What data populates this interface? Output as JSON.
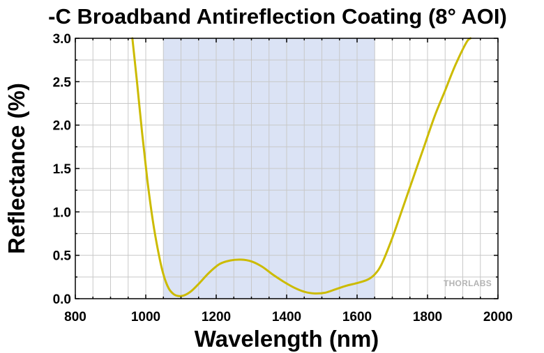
{
  "chart_data": {
    "type": "line",
    "title": "-C Broadband Antireflection Coating (8° AOI)",
    "xlabel": "Wavelength (nm)",
    "ylabel": "Reflectance (%)",
    "xlim": [
      800,
      2000
    ],
    "ylim": [
      0,
      3.0
    ],
    "x_ticks": [
      "800",
      "1000",
      "1200",
      "1400",
      "1600",
      "1800",
      "2000"
    ],
    "y_ticks": [
      "0.0",
      "0.5",
      "1.0",
      "1.5",
      "2.0",
      "2.5",
      "3.0"
    ],
    "grid": true,
    "shaded_band": {
      "x_start": 1050,
      "x_end": 1650,
      "color": "#dbe3f5"
    },
    "series": [
      {
        "color": "#ccbb00",
        "x": [
          962,
          975,
          990,
          1005,
          1020,
          1035,
          1050,
          1065,
          1080,
          1095,
          1110,
          1130,
          1150,
          1180,
          1210,
          1240,
          1270,
          1300,
          1330,
          1360,
          1390,
          1420,
          1450,
          1480,
          1510,
          1540,
          1570,
          1600,
          1630,
          1650,
          1670,
          1700,
          1730,
          1760,
          1790,
          1820,
          1850,
          1880,
          1910,
          1922
        ],
        "y": [
          3.0,
          2.5,
          1.9,
          1.35,
          0.9,
          0.55,
          0.28,
          0.12,
          0.05,
          0.03,
          0.04,
          0.09,
          0.17,
          0.3,
          0.4,
          0.44,
          0.45,
          0.43,
          0.37,
          0.28,
          0.2,
          0.13,
          0.08,
          0.06,
          0.07,
          0.11,
          0.15,
          0.18,
          0.22,
          0.28,
          0.4,
          0.7,
          1.05,
          1.4,
          1.75,
          2.1,
          2.4,
          2.7,
          2.95,
          3.0
        ]
      }
    ],
    "watermark": "THORLABS"
  }
}
